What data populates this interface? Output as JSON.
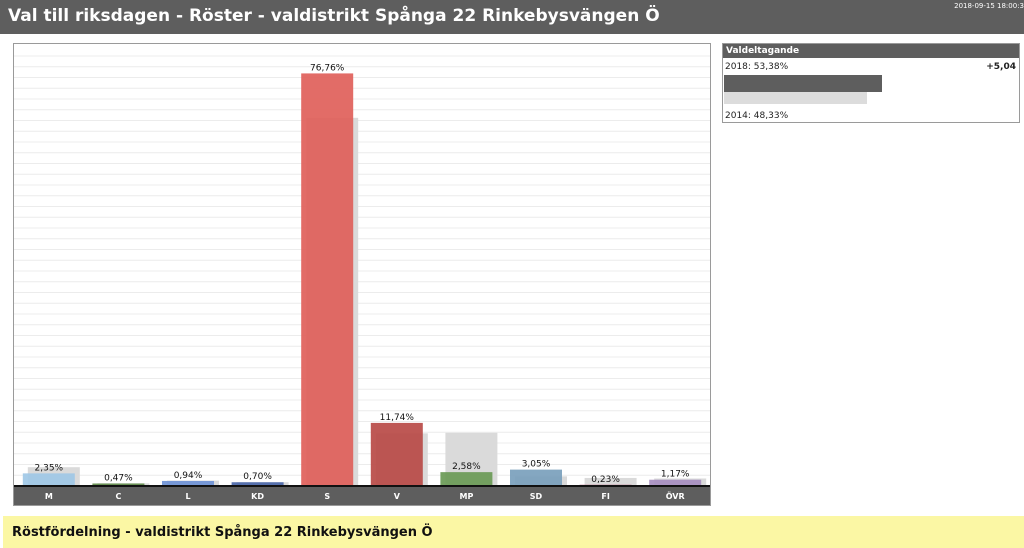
{
  "header": {
    "title": "Val till riksdagen - Röster - valdistrikt Spånga 22 Rinkebysvängen Ö",
    "timestamp": "2018-09-15 18:00:3"
  },
  "turnout": {
    "title": "Valdeltagande",
    "label_2018": "2018: 53,38%",
    "value_2018": 53.38,
    "diff": "+5,04",
    "label_2014": "2014: 48,33%",
    "value_2014": 48.33
  },
  "footer": {
    "title": "Röstfördelning - valdistrikt Spånga 22 Rinkebysvängen Ö"
  },
  "chart_data": {
    "type": "bar",
    "categories": [
      "M",
      "C",
      "L",
      "KD",
      "S",
      "V",
      "MP",
      "SD",
      "FI",
      "ÖVR"
    ],
    "series": [
      {
        "values": [
          2.35,
          0.47,
          0.94,
          0.7,
          76.76,
          11.74,
          2.58,
          3.05,
          0.23,
          1.17
        ]
      },
      {
        "values": [
          3.5,
          0.5,
          1.0,
          0.7,
          68.5,
          9.8,
          9.9,
          1.8,
          1.5,
          1.4
        ]
      }
    ],
    "value_labels": [
      "2,35%",
      "0,47%",
      "0,94%",
      "0,70%",
      "76,76%",
      "11,74%",
      "2,58%",
      "3,05%",
      "0,23%",
      "1,17%"
    ],
    "colors": [
      "#9fc8e6",
      "#5f8a4a",
      "#6f93d6",
      "#4a66a8",
      "#e0605a",
      "#b94a47",
      "#6a9a56",
      "#7a9fbc",
      "#b05070",
      "#a78ec0"
    ],
    "previous_color": "#dadada",
    "ylim": [
      0,
      80
    ],
    "grid": true
  }
}
